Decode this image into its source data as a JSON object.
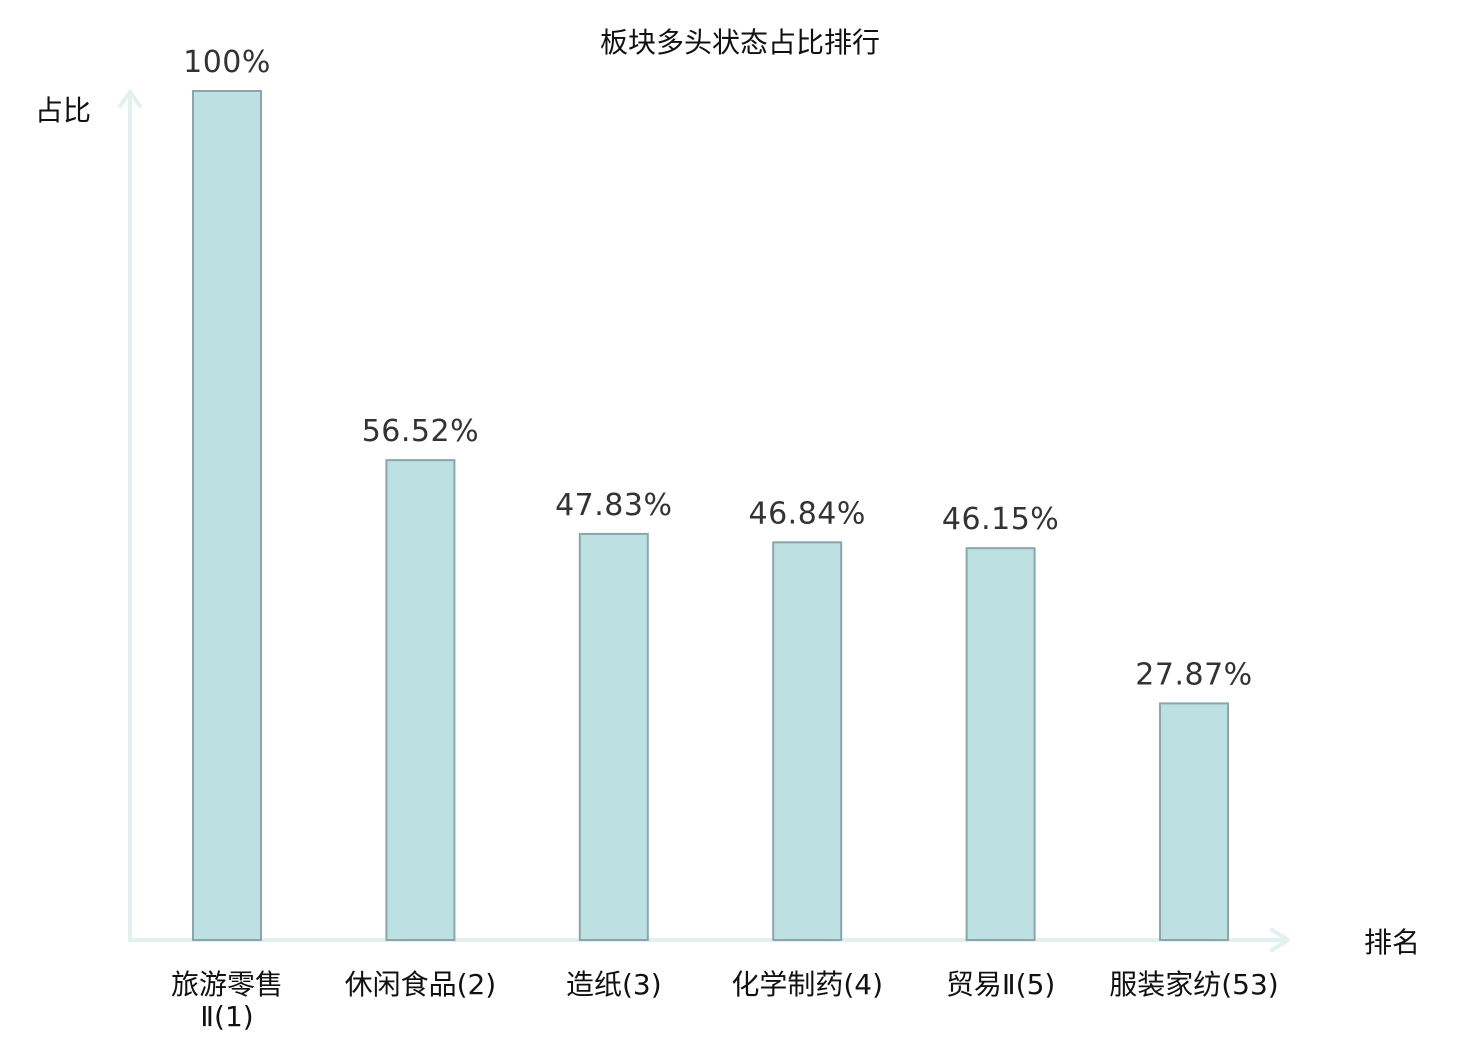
{
  "chart_data": {
    "type": "bar",
    "title": "板块多头状态占比排行",
    "ylabel": "占比",
    "xlabel": "排名",
    "ylim": [
      0,
      100
    ],
    "grid": false,
    "categories": [
      "旅游零售Ⅱ(1)",
      "休闲食品(2)",
      "造纸(3)",
      "化学制药(4)",
      "贸易Ⅱ(5)",
      "服装家纺(53)"
    ],
    "category_lines": [
      [
        "旅游零售",
        "Ⅱ(1)"
      ],
      [
        "休闲食品(2)"
      ],
      [
        "造纸(3)"
      ],
      [
        "化学制药(4)"
      ],
      [
        "贸易Ⅱ(5)"
      ],
      [
        "服装家纺(53)"
      ]
    ],
    "values": [
      100,
      56.52,
      47.83,
      46.84,
      46.15,
      27.87
    ],
    "value_labels": [
      "100%",
      "56.52%",
      "47.83%",
      "46.84%",
      "46.15%",
      "27.87%"
    ],
    "highlight_index": 5,
    "colors": {
      "bar_fill": "#bde0e3",
      "bar_stroke": "#8aa6aa",
      "axis": "#e2f1ef",
      "highlight_text": "#e8141b",
      "text": "#111111",
      "value_text": "#333333"
    }
  }
}
